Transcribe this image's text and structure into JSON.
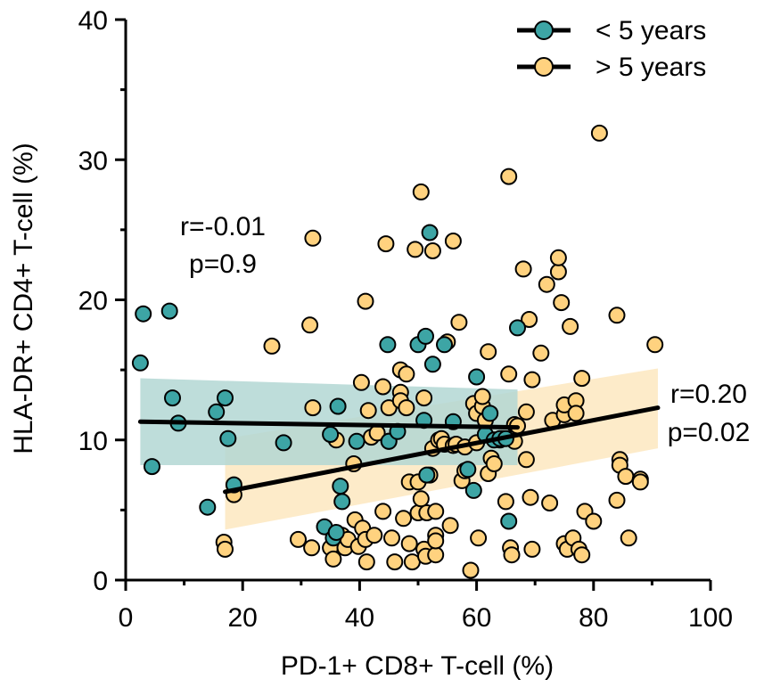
{
  "chart_data": {
    "type": "scatter",
    "xlabel": "PD-1+ CD8+ T-cell (%)",
    "ylabel": "HLA-DR+ CD4+ T-cell (%)",
    "xlim": [
      0,
      100
    ],
    "ylim": [
      0,
      40
    ],
    "xticks": [
      "0",
      "20",
      "40",
      "60",
      "80",
      "100"
    ],
    "yticks": [
      "0",
      "10",
      "20",
      "30",
      "40"
    ],
    "grid": false,
    "legend": "top-right",
    "series": [
      {
        "name": "> 5 years",
        "color": "#FFD27F",
        "band_color": "#FDE8BF",
        "regression": {
          "x": [
            17,
            91
          ],
          "y": [
            6.3,
            12.3
          ]
        },
        "band": {
          "x": [
            17,
            91
          ],
          "upper": [
            10.1,
            15.1
          ],
          "lower": [
            3.6,
            9.4
          ]
        },
        "annotation": {
          "r": "r=0.20",
          "p": "p=0.02"
        },
        "points": [
          [
            16.8,
            2.7
          ],
          [
            17,
            2.2
          ],
          [
            18.5,
            6.1
          ],
          [
            25,
            16.7
          ],
          [
            29.5,
            2.9
          ],
          [
            31.5,
            18.2
          ],
          [
            32,
            24.4
          ],
          [
            31.8,
            2.3
          ],
          [
            32,
            12.3
          ],
          [
            35,
            2.3
          ],
          [
            35.5,
            1.5
          ],
          [
            36,
            10
          ],
          [
            37,
            3.2
          ],
          [
            37.5,
            2.3
          ],
          [
            38,
            2.9
          ],
          [
            39,
            8.3
          ],
          [
            39.2,
            4.3
          ],
          [
            39.8,
            2.4
          ],
          [
            40.3,
            14.1
          ],
          [
            40.5,
            3.7
          ],
          [
            41,
            2.9
          ],
          [
            41,
            19.9
          ],
          [
            41.2,
            1.3
          ],
          [
            41.5,
            12.1
          ],
          [
            42,
            10.2
          ],
          [
            42.5,
            3.2
          ],
          [
            43,
            10.5
          ],
          [
            44,
            4.9
          ],
          [
            44,
            13.8
          ],
          [
            44.5,
            24
          ],
          [
            45,
            9.9
          ],
          [
            45,
            12.3
          ],
          [
            45.5,
            3
          ],
          [
            46,
            1.3
          ],
          [
            47,
            13.4
          ],
          [
            47,
            15
          ],
          [
            47,
            12.8
          ],
          [
            47.5,
            4.4
          ],
          [
            48,
            14.7
          ],
          [
            48,
            12.3
          ],
          [
            48.5,
            2.6
          ],
          [
            48.5,
            7
          ],
          [
            49,
            1.3
          ],
          [
            49.5,
            23.6
          ],
          [
            50,
            7
          ],
          [
            50,
            4.8
          ],
          [
            50.5,
            5.8
          ],
          [
            50.5,
            27.7
          ],
          [
            51,
            13
          ],
          [
            51,
            2.2
          ],
          [
            51.3,
            1.7
          ],
          [
            51.5,
            4.8
          ],
          [
            52,
            7.5
          ],
          [
            52.5,
            9.4
          ],
          [
            52.5,
            23.5
          ],
          [
            53,
            1.8
          ],
          [
            53,
            4.9
          ],
          [
            53,
            3.2
          ],
          [
            53,
            2.8
          ],
          [
            53.5,
            10
          ],
          [
            54,
            10.1
          ],
          [
            54.5,
            9.7
          ],
          [
            55,
            17
          ],
          [
            55.5,
            3.9
          ],
          [
            56,
            24.2
          ],
          [
            56,
            9.6
          ],
          [
            56.5,
            9.7
          ],
          [
            57,
            18.4
          ],
          [
            57.5,
            7.1
          ],
          [
            58,
            9.5
          ],
          [
            58,
            7.8
          ],
          [
            59,
            0.7
          ],
          [
            59.5,
            12.6
          ],
          [
            60,
            11.9
          ],
          [
            60,
            9.8
          ],
          [
            60.3,
            3
          ],
          [
            61,
            12.4
          ],
          [
            61,
            13.1
          ],
          [
            61.5,
            11.4
          ],
          [
            62,
            16.3
          ],
          [
            62,
            7.6
          ],
          [
            62.5,
            8.7
          ],
          [
            63,
            8.3
          ],
          [
            64,
            10
          ],
          [
            64.5,
            10.1
          ],
          [
            65,
            5.6
          ],
          [
            65.5,
            14.7
          ],
          [
            65.5,
            28.8
          ],
          [
            65.8,
            2.3
          ],
          [
            66,
            1.8
          ],
          [
            66.5,
            9.9
          ],
          [
            66.5,
            11.1
          ],
          [
            67,
            11
          ],
          [
            68,
            22.2
          ],
          [
            68.5,
            12
          ],
          [
            68.5,
            8.6
          ],
          [
            69,
            18.6
          ],
          [
            69.2,
            5.9
          ],
          [
            69.5,
            2.2
          ],
          [
            69.5,
            14.3
          ],
          [
            71,
            16.2
          ],
          [
            72,
            21.1
          ],
          [
            72.5,
            5.5
          ],
          [
            73,
            11.4
          ],
          [
            74,
            22
          ],
          [
            74,
            23
          ],
          [
            74.5,
            19.8
          ],
          [
            75,
            11.8
          ],
          [
            75,
            12.5
          ],
          [
            75,
            2.6
          ],
          [
            75.5,
            2.2
          ],
          [
            76,
            18.1
          ],
          [
            76.5,
            3
          ],
          [
            77,
            12.8
          ],
          [
            77,
            11.9
          ],
          [
            77.5,
            2.2
          ],
          [
            78,
            14.4
          ],
          [
            78,
            1.8
          ],
          [
            78.5,
            4.9
          ],
          [
            80,
            4.2
          ],
          [
            81,
            31.9
          ],
          [
            84,
            18.9
          ],
          [
            84,
            5.7
          ],
          [
            84.5,
            8.6
          ],
          [
            84.5,
            8.2
          ],
          [
            85.5,
            7.4
          ],
          [
            86,
            3
          ],
          [
            88,
            7.2
          ],
          [
            88,
            7
          ],
          [
            90.5,
            16.8
          ]
        ]
      },
      {
        "name": "< 5 years",
        "color": "#3DA5A5",
        "band_color": "#B3D7D4",
        "regression": {
          "x": [
            2.5,
            67
          ],
          "y": [
            11.3,
            10.9
          ]
        },
        "band": {
          "x": [
            2.5,
            67
          ],
          "upper": [
            14.4,
            13.6
          ],
          "lower": [
            8.2,
            8.2
          ]
        },
        "annotation": {
          "r": "r=-0.01",
          "p": "p=0.9"
        },
        "points": [
          [
            2.5,
            15.5
          ],
          [
            3,
            19
          ],
          [
            4.5,
            8.1
          ],
          [
            7.5,
            19.2
          ],
          [
            8,
            13
          ],
          [
            9,
            11.2
          ],
          [
            14,
            5.2
          ],
          [
            15.5,
            12
          ],
          [
            17,
            13
          ],
          [
            17.5,
            10.1
          ],
          [
            18.5,
            6.8
          ],
          [
            27,
            9.8
          ],
          [
            34,
            3.8
          ],
          [
            35,
            10.4
          ],
          [
            35.5,
            3
          ],
          [
            36,
            3.4
          ],
          [
            36.3,
            12.4
          ],
          [
            36.7,
            6.7
          ],
          [
            37,
            5.6
          ],
          [
            39.5,
            9.9
          ],
          [
            44.8,
            16.8
          ],
          [
            45,
            9.9
          ],
          [
            46.5,
            10.6
          ],
          [
            50,
            16.8
          ],
          [
            51,
            11.4
          ],
          [
            51.3,
            17.4
          ],
          [
            51.5,
            7.5
          ],
          [
            52,
            24.8
          ],
          [
            52.5,
            15.4
          ],
          [
            54.5,
            16.8
          ],
          [
            56,
            11.3
          ],
          [
            58.5,
            7.9
          ],
          [
            59.5,
            6.4
          ],
          [
            60,
            14.5
          ],
          [
            61.5,
            10.4
          ],
          [
            62.3,
            11.9
          ],
          [
            63,
            10
          ],
          [
            64,
            10.1
          ],
          [
            65,
            10.1
          ],
          [
            65.5,
            4.2
          ],
          [
            67,
            18
          ]
        ]
      }
    ]
  },
  "legend": {
    "items": [
      "< 5 years",
      "> 5 years"
    ]
  }
}
